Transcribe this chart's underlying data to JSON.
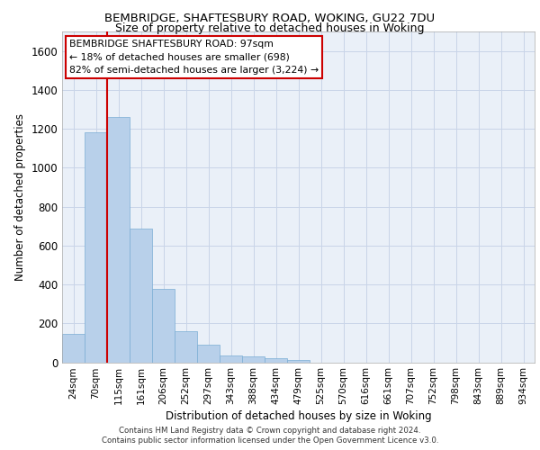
{
  "title1": "BEMBRIDGE, SHAFTESBURY ROAD, WOKING, GU22 7DU",
  "title2": "Size of property relative to detached houses in Woking",
  "xlabel": "Distribution of detached houses by size in Woking",
  "ylabel": "Number of detached properties",
  "bar_values": [
    145,
    1180,
    1260,
    685,
    375,
    160,
    90,
    35,
    28,
    20,
    12,
    0,
    0,
    0,
    0,
    0,
    0,
    0,
    0,
    0,
    0
  ],
  "categories": [
    "24sqm",
    "70sqm",
    "115sqm",
    "161sqm",
    "206sqm",
    "252sqm",
    "297sqm",
    "343sqm",
    "388sqm",
    "434sqm",
    "479sqm",
    "525sqm",
    "570sqm",
    "616sqm",
    "661sqm",
    "707sqm",
    "752sqm",
    "798sqm",
    "843sqm",
    "889sqm",
    "934sqm"
  ],
  "bar_color": "#b8d0ea",
  "bar_edge_color": "#7aadd4",
  "vline_color": "#cc0000",
  "vline_pos": 1.5,
  "annotation_text_line1": "BEMBRIDGE SHAFTESBURY ROAD: 97sqm",
  "annotation_text_line2": "← 18% of detached houses are smaller (698)",
  "annotation_text_line3": "82% of semi-detached houses are larger (3,224) →",
  "annotation_box_color": "#cc0000",
  "ylim": [
    0,
    1700
  ],
  "yticks": [
    0,
    200,
    400,
    600,
    800,
    1000,
    1200,
    1400,
    1600
  ],
  "grid_color": "#c8d4e8",
  "bg_color": "#eaf0f8",
  "footer_line1": "Contains HM Land Registry data © Crown copyright and database right 2024.",
  "footer_line2": "Contains public sector information licensed under the Open Government Licence v3.0."
}
